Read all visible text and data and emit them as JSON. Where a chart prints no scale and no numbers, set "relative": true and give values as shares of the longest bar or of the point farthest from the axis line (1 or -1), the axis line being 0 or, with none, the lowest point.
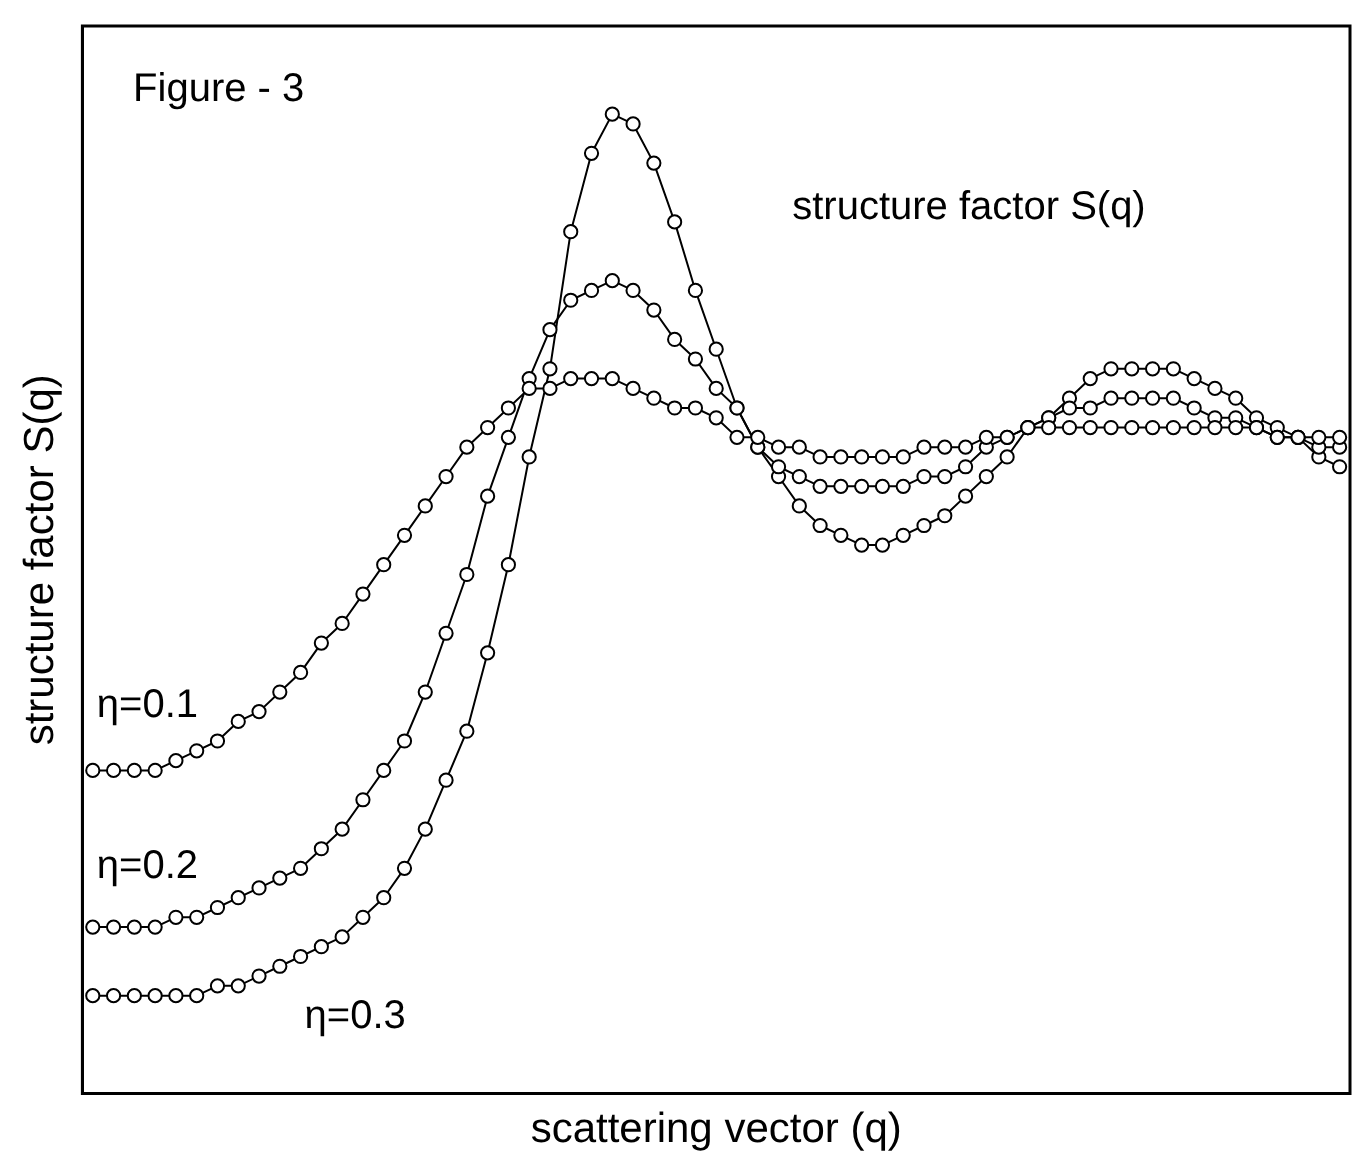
{
  "chart_data": {
    "type": "line",
    "relative": true,
    "xlabel": "scattering vector (q)",
    "ylabel": "structure factor S(q)",
    "annotations": [
      "Figure - 3",
      "structure factor S(q)"
    ],
    "legend": false,
    "grid": false,
    "marker": "circle",
    "line_style": "solid",
    "categories": [
      null,
      null,
      null,
      null,
      null,
      null,
      null,
      null,
      null,
      null,
      null,
      null,
      null,
      null,
      null,
      null,
      null,
      null,
      null,
      null,
      null,
      null,
      null,
      null,
      null,
      null,
      null,
      null,
      null,
      null,
      null,
      null,
      null,
      null,
      null,
      null,
      null,
      null,
      null,
      null,
      null,
      null,
      null,
      null,
      null,
      null,
      null,
      null,
      null,
      null,
      null,
      null,
      null,
      null,
      null,
      null,
      null,
      null,
      null,
      null,
      null
    ],
    "series": [
      {
        "name": "η=0.1",
        "color": "#000000",
        "values": [
          0.33,
          0.33,
          0.33,
          0.33,
          0.34,
          0.35,
          0.36,
          0.38,
          0.39,
          0.41,
          0.43,
          0.46,
          0.48,
          0.51,
          0.54,
          0.57,
          0.6,
          0.63,
          0.66,
          0.68,
          0.7,
          0.72,
          0.72,
          0.73,
          0.73,
          0.73,
          0.72,
          0.71,
          0.7,
          0.7,
          0.69,
          0.67,
          0.67,
          0.66,
          0.66,
          0.65,
          0.65,
          0.65,
          0.65,
          0.65,
          0.66,
          0.66,
          0.66,
          0.67,
          0.67,
          0.68,
          0.68,
          0.68,
          0.68,
          0.68,
          0.68,
          0.68,
          0.68,
          0.68,
          0.68,
          0.68,
          0.68,
          0.67,
          0.67,
          0.67,
          0.67
        ]
      },
      {
        "name": "η=0.2",
        "color": "#000000",
        "values": [
          0.17,
          0.17,
          0.17,
          0.17,
          0.18,
          0.18,
          0.19,
          0.2,
          0.21,
          0.22,
          0.23,
          0.25,
          0.27,
          0.3,
          0.33,
          0.36,
          0.41,
          0.47,
          0.53,
          0.61,
          0.67,
          0.73,
          0.78,
          0.81,
          0.82,
          0.83,
          0.82,
          0.8,
          0.77,
          0.75,
          0.72,
          0.7,
          0.66,
          0.64,
          0.63,
          0.62,
          0.62,
          0.62,
          0.62,
          0.62,
          0.63,
          0.63,
          0.64,
          0.66,
          0.67,
          0.68,
          0.69,
          0.7,
          0.7,
          0.71,
          0.71,
          0.71,
          0.71,
          0.7,
          0.69,
          0.69,
          0.68,
          0.67,
          0.67,
          0.66,
          0.66
        ]
      },
      {
        "name": "η=0.3",
        "color": "#000000",
        "values": [
          0.1,
          0.1,
          0.1,
          0.1,
          0.1,
          0.1,
          0.11,
          0.11,
          0.12,
          0.13,
          0.14,
          0.15,
          0.16,
          0.18,
          0.2,
          0.23,
          0.27,
          0.32,
          0.37,
          0.45,
          0.54,
          0.65,
          0.74,
          0.88,
          0.96,
          1.0,
          0.99,
          0.95,
          0.89,
          0.82,
          0.76,
          0.7,
          0.66,
          0.63,
          0.6,
          0.58,
          0.57,
          0.56,
          0.56,
          0.57,
          0.58,
          0.59,
          0.61,
          0.63,
          0.65,
          0.68,
          0.69,
          0.71,
          0.73,
          0.74,
          0.74,
          0.74,
          0.74,
          0.73,
          0.72,
          0.71,
          0.69,
          0.68,
          0.67,
          0.65,
          0.64
        ]
      }
    ]
  }
}
